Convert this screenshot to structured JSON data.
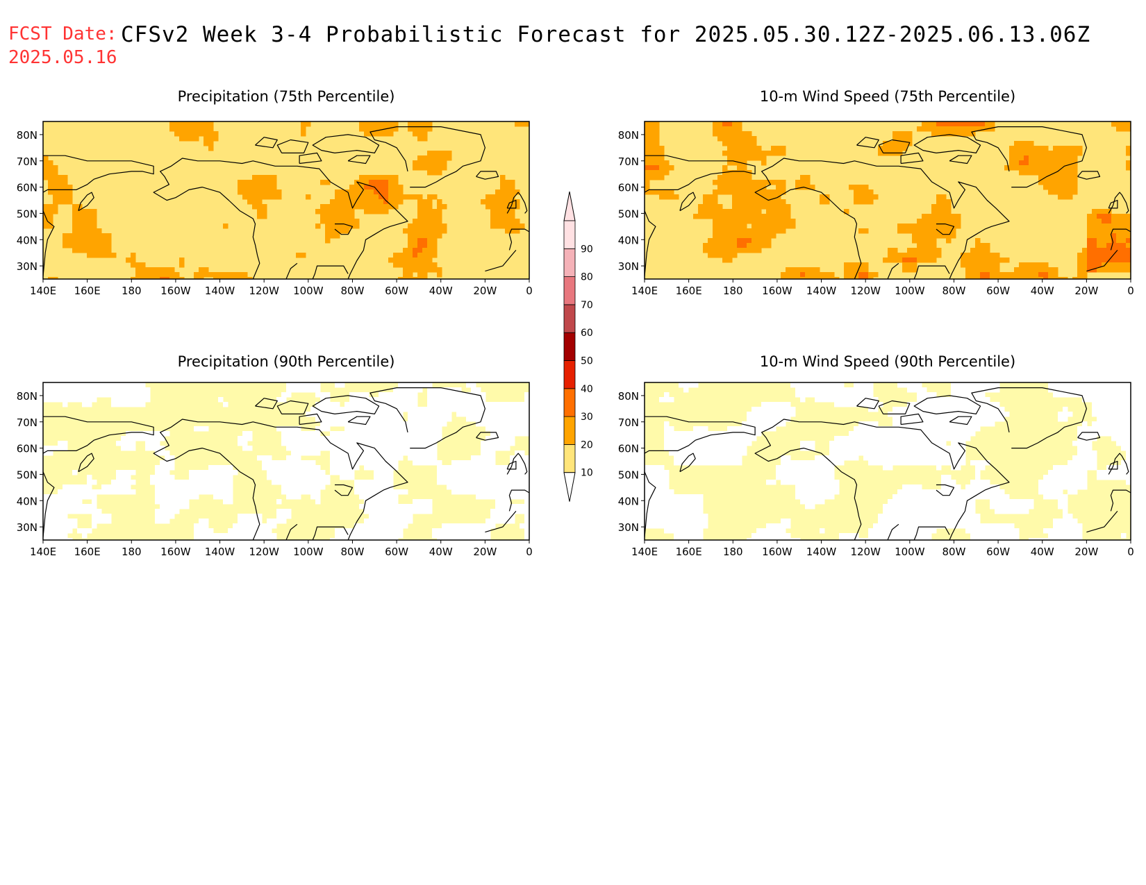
{
  "header": {
    "fcst_label": "FCST Date:",
    "fcst_date": "2025.05.16",
    "title": "CFSv2 Week 3-4 Probabilistic Forecast for 2025.05.30.12Z-2025.06.13.06Z"
  },
  "panels": [
    {
      "id": "precip-75",
      "title": "Precipitation (75th Percentile)",
      "variable": "precipitation",
      "percentile": 75
    },
    {
      "id": "wind-75",
      "title": "10-m Wind Speed (75th Percentile)",
      "variable": "wind",
      "percentile": 75
    },
    {
      "id": "precip-90",
      "title": "Precipitation (90th Percentile)",
      "variable": "precipitation",
      "percentile": 90
    },
    {
      "id": "wind-90",
      "title": "10-m Wind Speed (90th Percentile)",
      "variable": "wind",
      "percentile": 90
    }
  ],
  "axes": {
    "lon_ticks": [
      "140E",
      "160E",
      "180",
      "160W",
      "140W",
      "120W",
      "100W",
      "80W",
      "60W",
      "40W",
      "20W",
      "0"
    ],
    "lat_ticks": [
      "80N",
      "70N",
      "60N",
      "50N",
      "40N",
      "30N"
    ],
    "lon_range": [
      140,
      360
    ],
    "lat_range": [
      25,
      85
    ]
  },
  "colorbar": {
    "levels": [
      "10",
      "20",
      "30",
      "40",
      "50",
      "60",
      "70",
      "80",
      "90"
    ],
    "colors": [
      "#fffaaa",
      "#ffe57a",
      "#ffa400",
      "#ff6f00",
      "#e62000",
      "#a30000",
      "#c0484b",
      "#e8777e",
      "#f5b2b8",
      "#ffe1e3"
    ]
  }
}
